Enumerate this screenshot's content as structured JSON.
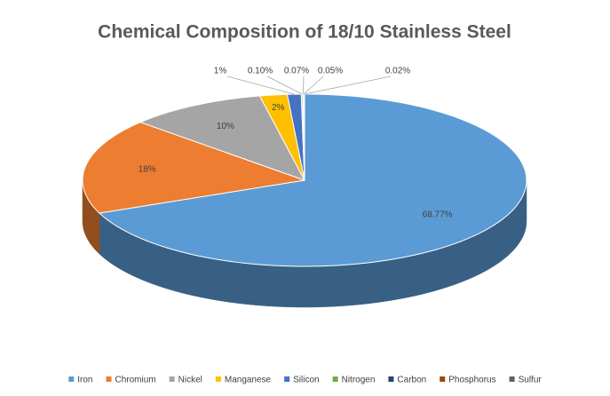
{
  "chart_data": {
    "type": "pie",
    "title": "Chemical Composition of 18/10 Stainless Steel",
    "categories": [
      "Iron",
      "Chromium",
      "Nickel",
      "Manganese",
      "Silicon",
      "Nitrogen",
      "Carbon",
      "Phosphorus",
      "Sulfur"
    ],
    "values": [
      68.77,
      18,
      10,
      2,
      1,
      0.1,
      0.07,
      0.05,
      0.02
    ],
    "value_labels": [
      "68.77%",
      "18%",
      "10%",
      "2%",
      "1%",
      "0.10%",
      "0.07%",
      "0.05%",
      "0.02%"
    ],
    "colors": [
      "#5b9bd5",
      "#ed7d31",
      "#a5a5a5",
      "#ffc000",
      "#4472c4",
      "#70ad47",
      "#264478",
      "#9e480e",
      "#636363"
    ],
    "legend": "bottom"
  }
}
